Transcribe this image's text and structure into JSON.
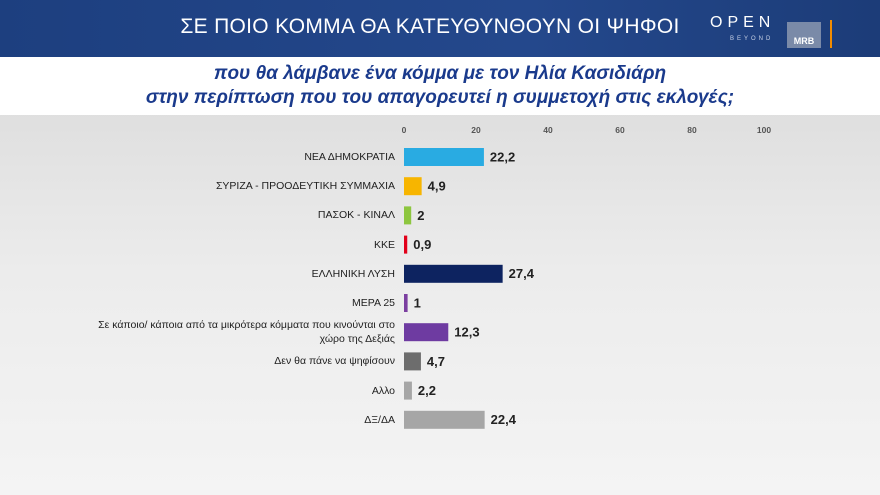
{
  "branding": {
    "channel": "OPEN",
    "tagline": "BEYOND",
    "pollster": "MRB"
  },
  "chart_data": {
    "type": "hbar",
    "title": "ΣΕ ΠΟΙΟ ΚΟΜΜΑ ΘΑ ΚΑΤΕΥΘΥΝΘΟΥΝ ΟΙ ΨΗΦΟΙ",
    "subtitle": [
      "που θα λάμβανε ένα κόμμα με τον Ηλία Κασιδιάρη",
      "στην περίπτωση που του απαγορευτεί η συμμετοχή στις εκλογές;"
    ],
    "categories": [
      "ΝΕΑ ΔΗΜΟΚΡΑΤΙΑ",
      "ΣΥΡΙΖΑ - ΠΡΟΟΔΕΥΤΙΚΗ ΣΥΜΜΑΧΙΑ",
      "ΠΑΣΟΚ - ΚΙΝΑΛ",
      "ΚΚΕ",
      "ΕΛΛΗΝΙΚΗ ΛΥΣΗ",
      "ΜΕΡΑ 25",
      "Σε κάποιο/ κάποια από τα μικρότερα κόμματα που κινούνται στο χώρο της Δεξιάς",
      "Δεν θα πάνε να ψηφίσουν",
      "Αλλο",
      "ΔΞ/ΔΑ"
    ],
    "values": [
      22.2,
      4.9,
      2,
      0.9,
      27.4,
      1,
      12.3,
      4.7,
      2.2,
      22.4
    ],
    "value_labels": [
      "22,2",
      "4,9",
      "2",
      "0,9",
      "27,4",
      "1",
      "12,3",
      "4,7",
      "2,2",
      "22,4"
    ],
    "colors": [
      "#29abe2",
      "#f7b500",
      "#8dc63f",
      "#e2001a",
      "#0d2360",
      "#7b3fa0",
      "#6e3ba1",
      "#6d6d6d",
      "#a6a6a6",
      "#a6a6a6"
    ],
    "xlim": [
      0,
      100
    ],
    "xticks": [
      0,
      20,
      40,
      60,
      80,
      100
    ],
    "grid": false
  }
}
